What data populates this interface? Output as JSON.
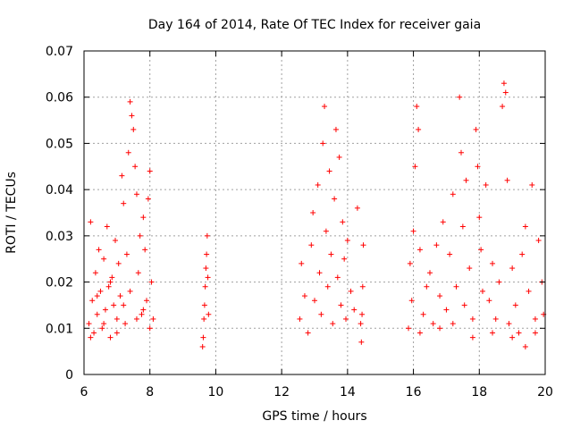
{
  "chart_data": {
    "type": "scatter",
    "title": "Day 164 of 2014, Rate Of TEC Index for receiver gaia",
    "xlabel": "GPS time / hours",
    "ylabel": "ROTI / TECUs",
    "xlim": [
      6,
      20
    ],
    "ylim": [
      0,
      0.07
    ],
    "xticks": [
      6,
      8,
      10,
      12,
      14,
      16,
      18,
      20
    ],
    "xtick_labels": [
      "6",
      "8",
      "10",
      "12",
      "14",
      "16",
      "18",
      "20"
    ],
    "yticks": [
      0,
      0.01,
      0.02,
      0.03,
      0.04,
      0.05,
      0.06,
      0.07
    ],
    "ytick_labels": [
      "0",
      "0.01",
      "0.02",
      "0.03",
      "0.04",
      "0.05",
      "0.06",
      "0.07"
    ],
    "grid": true,
    "marker": "+",
    "color": "#ff0000",
    "series": [
      {
        "name": "ROTI",
        "points": [
          [
            6.15,
            0.011
          ],
          [
            6.2,
            0.033
          ],
          [
            6.25,
            0.016
          ],
          [
            6.3,
            0.009
          ],
          [
            6.35,
            0.022
          ],
          [
            6.4,
            0.013
          ],
          [
            6.45,
            0.027
          ],
          [
            6.5,
            0.018
          ],
          [
            6.55,
            0.01
          ],
          [
            6.6,
            0.025
          ],
          [
            6.65,
            0.014
          ],
          [
            6.7,
            0.032
          ],
          [
            6.75,
            0.019
          ],
          [
            6.8,
            0.008
          ],
          [
            6.85,
            0.021
          ],
          [
            6.9,
            0.015
          ],
          [
            6.95,
            0.029
          ],
          [
            7.0,
            0.012
          ],
          [
            7.05,
            0.024
          ],
          [
            7.1,
            0.017
          ],
          [
            7.15,
            0.043
          ],
          [
            7.2,
            0.037
          ],
          [
            7.25,
            0.011
          ],
          [
            7.3,
            0.026
          ],
          [
            7.35,
            0.048
          ],
          [
            7.4,
            0.059
          ],
          [
            7.45,
            0.056
          ],
          [
            7.5,
            0.053
          ],
          [
            7.55,
            0.045
          ],
          [
            7.6,
            0.039
          ],
          [
            7.65,
            0.022
          ],
          [
            7.7,
            0.03
          ],
          [
            7.75,
            0.013
          ],
          [
            7.8,
            0.034
          ],
          [
            7.85,
            0.027
          ],
          [
            7.9,
            0.016
          ],
          [
            7.95,
            0.038
          ],
          [
            8.0,
            0.044
          ],
          [
            8.05,
            0.02
          ],
          [
            8.1,
            0.012
          ],
          [
            6.2,
            0.008
          ],
          [
            6.4,
            0.017
          ],
          [
            6.6,
            0.011
          ],
          [
            6.8,
            0.02
          ],
          [
            7.0,
            0.009
          ],
          [
            7.2,
            0.015
          ],
          [
            7.4,
            0.018
          ],
          [
            7.6,
            0.012
          ],
          [
            7.8,
            0.014
          ],
          [
            8.0,
            0.01
          ],
          [
            9.6,
            0.006
          ],
          [
            9.62,
            0.008
          ],
          [
            9.64,
            0.012
          ],
          [
            9.66,
            0.015
          ],
          [
            9.68,
            0.019
          ],
          [
            9.7,
            0.023
          ],
          [
            9.72,
            0.026
          ],
          [
            9.74,
            0.03
          ],
          [
            9.76,
            0.021
          ],
          [
            9.78,
            0.013
          ],
          [
            12.55,
            0.012
          ],
          [
            12.6,
            0.024
          ],
          [
            12.7,
            0.017
          ],
          [
            12.8,
            0.009
          ],
          [
            12.9,
            0.028
          ],
          [
            12.95,
            0.035
          ],
          [
            13.0,
            0.016
          ],
          [
            13.1,
            0.041
          ],
          [
            13.15,
            0.022
          ],
          [
            13.2,
            0.013
          ],
          [
            13.25,
            0.05
          ],
          [
            13.3,
            0.058
          ],
          [
            13.35,
            0.031
          ],
          [
            13.4,
            0.019
          ],
          [
            13.45,
            0.044
          ],
          [
            13.5,
            0.026
          ],
          [
            13.55,
            0.011
          ],
          [
            13.6,
            0.038
          ],
          [
            13.65,
            0.053
          ],
          [
            13.7,
            0.021
          ],
          [
            13.75,
            0.047
          ],
          [
            13.8,
            0.015
          ],
          [
            13.85,
            0.033
          ],
          [
            13.9,
            0.025
          ],
          [
            13.95,
            0.012
          ],
          [
            14.0,
            0.029
          ],
          [
            14.1,
            0.018
          ],
          [
            14.2,
            0.014
          ],
          [
            14.3,
            0.036
          ],
          [
            14.4,
            0.011
          ],
          [
            14.42,
            0.007
          ],
          [
            14.44,
            0.013
          ],
          [
            14.46,
            0.019
          ],
          [
            14.48,
            0.028
          ],
          [
            15.85,
            0.01
          ],
          [
            15.9,
            0.024
          ],
          [
            15.95,
            0.016
          ],
          [
            16.0,
            0.031
          ],
          [
            16.05,
            0.045
          ],
          [
            16.1,
            0.058
          ],
          [
            16.15,
            0.053
          ],
          [
            16.2,
            0.027
          ],
          [
            16.3,
            0.013
          ],
          [
            16.4,
            0.019
          ],
          [
            16.5,
            0.022
          ],
          [
            16.6,
            0.011
          ],
          [
            16.7,
            0.028
          ],
          [
            16.8,
            0.017
          ],
          [
            16.9,
            0.033
          ],
          [
            17.0,
            0.014
          ],
          [
            17.1,
            0.026
          ],
          [
            17.2,
            0.039
          ],
          [
            17.3,
            0.019
          ],
          [
            17.4,
            0.06
          ],
          [
            17.45,
            0.048
          ],
          [
            17.5,
            0.032
          ],
          [
            17.55,
            0.015
          ],
          [
            17.6,
            0.042
          ],
          [
            17.7,
            0.023
          ],
          [
            17.8,
            0.012
          ],
          [
            17.9,
            0.053
          ],
          [
            17.95,
            0.045
          ],
          [
            18.0,
            0.034
          ],
          [
            18.05,
            0.027
          ],
          [
            18.1,
            0.018
          ],
          [
            18.2,
            0.041
          ],
          [
            18.3,
            0.016
          ],
          [
            18.4,
            0.024
          ],
          [
            18.5,
            0.012
          ],
          [
            18.6,
            0.02
          ],
          [
            18.7,
            0.058
          ],
          [
            18.75,
            0.063
          ],
          [
            18.8,
            0.061
          ],
          [
            18.85,
            0.042
          ],
          [
            18.9,
            0.011
          ],
          [
            19.0,
            0.023
          ],
          [
            19.1,
            0.015
          ],
          [
            19.2,
            0.009
          ],
          [
            19.3,
            0.026
          ],
          [
            19.4,
            0.032
          ],
          [
            19.5,
            0.018
          ],
          [
            19.6,
            0.041
          ],
          [
            19.7,
            0.012
          ],
          [
            19.8,
            0.029
          ],
          [
            19.9,
            0.02
          ],
          [
            19.95,
            0.013
          ],
          [
            16.2,
            0.009
          ],
          [
            16.8,
            0.01
          ],
          [
            17.2,
            0.011
          ],
          [
            17.8,
            0.008
          ],
          [
            18.4,
            0.009
          ],
          [
            19.0,
            0.008
          ],
          [
            19.4,
            0.006
          ],
          [
            19.7,
            0.009
          ]
        ]
      }
    ]
  }
}
